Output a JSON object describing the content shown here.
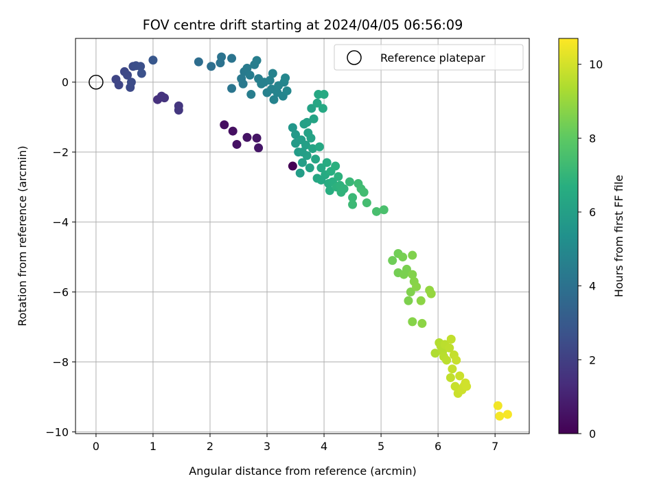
{
  "chart_data": {
    "type": "scatter",
    "title": "FOV centre drift starting at 2024/04/05 06:56:09",
    "xlabel": "Angular distance from reference (arcmin)",
    "ylabel": "Rotation from reference (arcmin)",
    "xlim": [
      -0.36,
      7.6
    ],
    "ylim": [
      -10.05,
      1.25
    ],
    "xticks": [
      0,
      1,
      2,
      3,
      4,
      5,
      6,
      7
    ],
    "yticks": [
      0,
      -2,
      -4,
      -6,
      -8,
      -10
    ],
    "grid": true,
    "legend": {
      "position": "upper right",
      "entries": [
        "Reference platepar"
      ]
    },
    "reference_point": {
      "x": 0,
      "y": 0,
      "label": "Reference platepar"
    },
    "colorbar": {
      "label": "Hours from first FF file",
      "colormap": "viridis",
      "min": 0,
      "max": 10.7,
      "ticks": [
        0,
        2,
        4,
        6,
        8,
        10
      ],
      "stops": [
        "#440154",
        "#472d7b",
        "#3b528b",
        "#2c728e",
        "#21918c",
        "#28ae80",
        "#5ec962",
        "#addc30",
        "#fde725"
      ]
    },
    "points": [
      {
        "x": 3.45,
        "y": -2.4,
        "h": 0.0
      },
      {
        "x": 2.25,
        "y": -1.22,
        "h": 0.4
      },
      {
        "x": 2.4,
        "y": -1.4,
        "h": 0.45
      },
      {
        "x": 2.47,
        "y": -1.78,
        "h": 0.5
      },
      {
        "x": 2.65,
        "y": -1.58,
        "h": 0.55
      },
      {
        "x": 2.82,
        "y": -1.6,
        "h": 0.6
      },
      {
        "x": 2.85,
        "y": -1.88,
        "h": 0.65
      },
      {
        "x": 1.08,
        "y": -0.5,
        "h": 1.5
      },
      {
        "x": 1.15,
        "y": -0.4,
        "h": 1.55
      },
      {
        "x": 1.2,
        "y": -0.45,
        "h": 1.6
      },
      {
        "x": 1.45,
        "y": -0.68,
        "h": 1.65
      },
      {
        "x": 1.45,
        "y": -0.8,
        "h": 1.7
      },
      {
        "x": 0.35,
        "y": 0.08,
        "h": 2.2
      },
      {
        "x": 0.4,
        "y": -0.08,
        "h": 2.25
      },
      {
        "x": 0.5,
        "y": 0.3,
        "h": 2.3
      },
      {
        "x": 0.55,
        "y": 0.2,
        "h": 2.35
      },
      {
        "x": 0.6,
        "y": -0.15,
        "h": 2.4
      },
      {
        "x": 0.62,
        "y": 0.0,
        "h": 2.45
      },
      {
        "x": 0.65,
        "y": 0.45,
        "h": 2.5
      },
      {
        "x": 0.7,
        "y": 0.47,
        "h": 2.55
      },
      {
        "x": 0.78,
        "y": 0.45,
        "h": 2.6
      },
      {
        "x": 0.8,
        "y": 0.25,
        "h": 2.65
      },
      {
        "x": 1.0,
        "y": 0.63,
        "h": 2.9
      },
      {
        "x": 1.8,
        "y": 0.58,
        "h": 3.8
      },
      {
        "x": 2.02,
        "y": 0.45,
        "h": 3.9
      },
      {
        "x": 2.18,
        "y": 0.55,
        "h": 4.0
      },
      {
        "x": 2.2,
        "y": 0.72,
        "h": 4.05
      },
      {
        "x": 2.38,
        "y": 0.68,
        "h": 4.1
      },
      {
        "x": 2.38,
        "y": -0.18,
        "h": 4.15
      },
      {
        "x": 2.55,
        "y": 0.1,
        "h": 4.3
      },
      {
        "x": 2.6,
        "y": 0.3,
        "h": 4.35
      },
      {
        "x": 2.65,
        "y": 0.4,
        "h": 4.4
      },
      {
        "x": 2.7,
        "y": 0.2,
        "h": 4.45
      },
      {
        "x": 2.72,
        "y": -0.35,
        "h": 4.5
      },
      {
        "x": 2.78,
        "y": 0.5,
        "h": 4.5
      },
      {
        "x": 2.82,
        "y": 0.62,
        "h": 4.55
      },
      {
        "x": 2.85,
        "y": 0.1,
        "h": 4.55
      },
      {
        "x": 2.9,
        "y": -0.05,
        "h": 4.6
      },
      {
        "x": 2.95,
        "y": 0.0,
        "h": 4.6
      },
      {
        "x": 3.0,
        "y": -0.3,
        "h": 4.65
      },
      {
        "x": 3.05,
        "y": 0.05,
        "h": 4.65
      },
      {
        "x": 3.08,
        "y": -0.2,
        "h": 4.7
      },
      {
        "x": 3.1,
        "y": 0.25,
        "h": 4.7
      },
      {
        "x": 3.12,
        "y": -0.5,
        "h": 4.75
      },
      {
        "x": 3.18,
        "y": -0.3,
        "h": 4.8
      },
      {
        "x": 3.2,
        "y": -0.1,
        "h": 4.8
      },
      {
        "x": 3.28,
        "y": -0.4,
        "h": 4.85
      },
      {
        "x": 3.3,
        "y": 0.0,
        "h": 4.85
      },
      {
        "x": 3.32,
        "y": 0.12,
        "h": 4.9
      },
      {
        "x": 3.35,
        "y": -0.25,
        "h": 4.9
      },
      {
        "x": 2.58,
        "y": -0.05,
        "h": 4.3
      },
      {
        "x": 3.45,
        "y": -1.3,
        "h": 5.6
      },
      {
        "x": 3.5,
        "y": -1.5,
        "h": 5.7
      },
      {
        "x": 3.55,
        "y": -2.0,
        "h": 5.8
      },
      {
        "x": 3.58,
        "y": -2.6,
        "h": 5.9
      },
      {
        "x": 3.6,
        "y": -1.65,
        "h": 5.9
      },
      {
        "x": 3.62,
        "y": -2.3,
        "h": 5.95
      },
      {
        "x": 3.65,
        "y": -1.2,
        "h": 6.0
      },
      {
        "x": 3.68,
        "y": -1.8,
        "h": 6.0
      },
      {
        "x": 3.7,
        "y": -2.1,
        "h": 6.05
      },
      {
        "x": 3.72,
        "y": -1.45,
        "h": 6.1
      },
      {
        "x": 3.75,
        "y": -2.45,
        "h": 6.1
      },
      {
        "x": 3.78,
        "y": -0.75,
        "h": 6.15
      },
      {
        "x": 3.8,
        "y": -1.9,
        "h": 6.2
      },
      {
        "x": 3.82,
        "y": -1.05,
        "h": 6.2
      },
      {
        "x": 3.85,
        "y": -2.2,
        "h": 6.25
      },
      {
        "x": 3.88,
        "y": -0.6,
        "h": 6.3
      },
      {
        "x": 3.88,
        "y": -2.75,
        "h": 6.3
      },
      {
        "x": 3.9,
        "y": -0.35,
        "h": 6.35
      },
      {
        "x": 3.92,
        "y": -1.85,
        "h": 6.35
      },
      {
        "x": 3.95,
        "y": -2.45,
        "h": 6.4
      },
      {
        "x": 3.98,
        "y": -0.75,
        "h": 6.4
      },
      {
        "x": 4.0,
        "y": -0.35,
        "h": 6.45
      },
      {
        "x": 4.02,
        "y": -2.65,
        "h": 6.5
      },
      {
        "x": 4.05,
        "y": -2.3,
        "h": 6.55
      },
      {
        "x": 4.08,
        "y": -2.9,
        "h": 6.6
      },
      {
        "x": 4.1,
        "y": -3.1,
        "h": 6.65
      },
      {
        "x": 4.12,
        "y": -2.55,
        "h": 6.7
      },
      {
        "x": 4.15,
        "y": -2.85,
        "h": 6.7
      },
      {
        "x": 4.2,
        "y": -2.4,
        "h": 6.75
      },
      {
        "x": 4.22,
        "y": -3.0,
        "h": 6.8
      },
      {
        "x": 4.25,
        "y": -2.7,
        "h": 6.8
      },
      {
        "x": 4.28,
        "y": -2.95,
        "h": 6.85
      },
      {
        "x": 4.3,
        "y": -3.15,
        "h": 6.9
      },
      {
        "x": 4.35,
        "y": -3.05,
        "h": 6.9
      },
      {
        "x": 3.5,
        "y": -1.75,
        "h": 5.75
      },
      {
        "x": 3.62,
        "y": -2.0,
        "h": 5.95
      },
      {
        "x": 3.7,
        "y": -1.15,
        "h": 6.05
      },
      {
        "x": 3.77,
        "y": -1.6,
        "h": 6.15
      },
      {
        "x": 3.95,
        "y": -2.8,
        "h": 6.4
      },
      {
        "x": 4.45,
        "y": -2.85,
        "h": 7.1
      },
      {
        "x": 4.5,
        "y": -3.3,
        "h": 7.15
      },
      {
        "x": 4.5,
        "y": -3.5,
        "h": 7.2
      },
      {
        "x": 4.6,
        "y": -2.9,
        "h": 7.25
      },
      {
        "x": 4.65,
        "y": -3.05,
        "h": 7.3
      },
      {
        "x": 4.7,
        "y": -3.15,
        "h": 7.35
      },
      {
        "x": 4.75,
        "y": -3.45,
        "h": 7.4
      },
      {
        "x": 4.92,
        "y": -3.7,
        "h": 7.5
      },
      {
        "x": 5.05,
        "y": -3.65,
        "h": 7.55
      },
      {
        "x": 5.2,
        "y": -5.1,
        "h": 8.3
      },
      {
        "x": 5.3,
        "y": -4.9,
        "h": 8.35
      },
      {
        "x": 5.3,
        "y": -5.45,
        "h": 8.4
      },
      {
        "x": 5.38,
        "y": -5.0,
        "h": 8.45
      },
      {
        "x": 5.4,
        "y": -5.5,
        "h": 8.5
      },
      {
        "x": 5.45,
        "y": -5.35,
        "h": 8.5
      },
      {
        "x": 5.48,
        "y": -6.25,
        "h": 8.55
      },
      {
        "x": 5.52,
        "y": -6.0,
        "h": 8.6
      },
      {
        "x": 5.55,
        "y": -4.95,
        "h": 8.6
      },
      {
        "x": 5.55,
        "y": -5.5,
        "h": 8.65
      },
      {
        "x": 5.55,
        "y": -6.85,
        "h": 8.7
      },
      {
        "x": 5.58,
        "y": -5.7,
        "h": 8.7
      },
      {
        "x": 5.62,
        "y": -5.85,
        "h": 8.75
      },
      {
        "x": 5.7,
        "y": -6.25,
        "h": 8.8
      },
      {
        "x": 5.72,
        "y": -6.9,
        "h": 8.8
      },
      {
        "x": 5.85,
        "y": -5.95,
        "h": 8.9
      },
      {
        "x": 5.88,
        "y": -6.05,
        "h": 8.95
      },
      {
        "x": 5.95,
        "y": -7.75,
        "h": 9.4
      },
      {
        "x": 6.02,
        "y": -7.45,
        "h": 9.45
      },
      {
        "x": 6.05,
        "y": -7.55,
        "h": 9.5
      },
      {
        "x": 6.08,
        "y": -7.7,
        "h": 9.5
      },
      {
        "x": 6.1,
        "y": -7.85,
        "h": 9.55
      },
      {
        "x": 6.12,
        "y": -7.5,
        "h": 9.6
      },
      {
        "x": 6.15,
        "y": -7.95,
        "h": 9.6
      },
      {
        "x": 6.2,
        "y": -7.6,
        "h": 9.65
      },
      {
        "x": 6.22,
        "y": -8.45,
        "h": 9.7
      },
      {
        "x": 6.23,
        "y": -7.35,
        "h": 9.7
      },
      {
        "x": 6.25,
        "y": -8.2,
        "h": 9.75
      },
      {
        "x": 6.28,
        "y": -7.8,
        "h": 9.75
      },
      {
        "x": 6.3,
        "y": -8.7,
        "h": 9.8
      },
      {
        "x": 6.32,
        "y": -7.95,
        "h": 9.8
      },
      {
        "x": 6.35,
        "y": -8.9,
        "h": 9.85
      },
      {
        "x": 6.38,
        "y": -8.4,
        "h": 9.85
      },
      {
        "x": 6.42,
        "y": -8.8,
        "h": 9.9
      },
      {
        "x": 6.45,
        "y": -8.7,
        "h": 9.9
      },
      {
        "x": 6.48,
        "y": -8.6,
        "h": 9.95
      },
      {
        "x": 6.5,
        "y": -8.7,
        "h": 9.95
      },
      {
        "x": 7.05,
        "y": -9.25,
        "h": 10.5
      },
      {
        "x": 7.08,
        "y": -9.55,
        "h": 10.55
      },
      {
        "x": 7.22,
        "y": -9.5,
        "h": 10.6
      }
    ]
  }
}
